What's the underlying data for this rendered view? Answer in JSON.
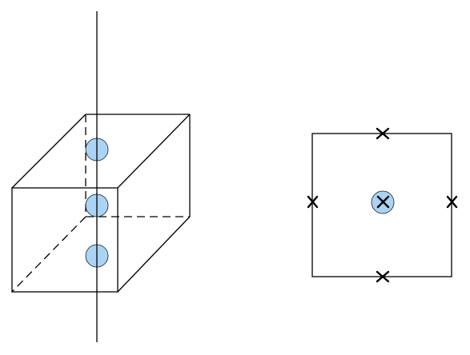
{
  "figure": {
    "left_panel": {
      "description_shape": "cube",
      "axis": "vertical-axis",
      "atoms_count": 3
    },
    "right_panel": {
      "description_shape": "square",
      "cross_marks_count": 4,
      "central_atom_count": 1
    }
  },
  "colors": {
    "stroke": "#000000",
    "atom_fill": "#a9d4f5",
    "atom_stroke": "#1a1a1a",
    "background": "#ffffff"
  }
}
